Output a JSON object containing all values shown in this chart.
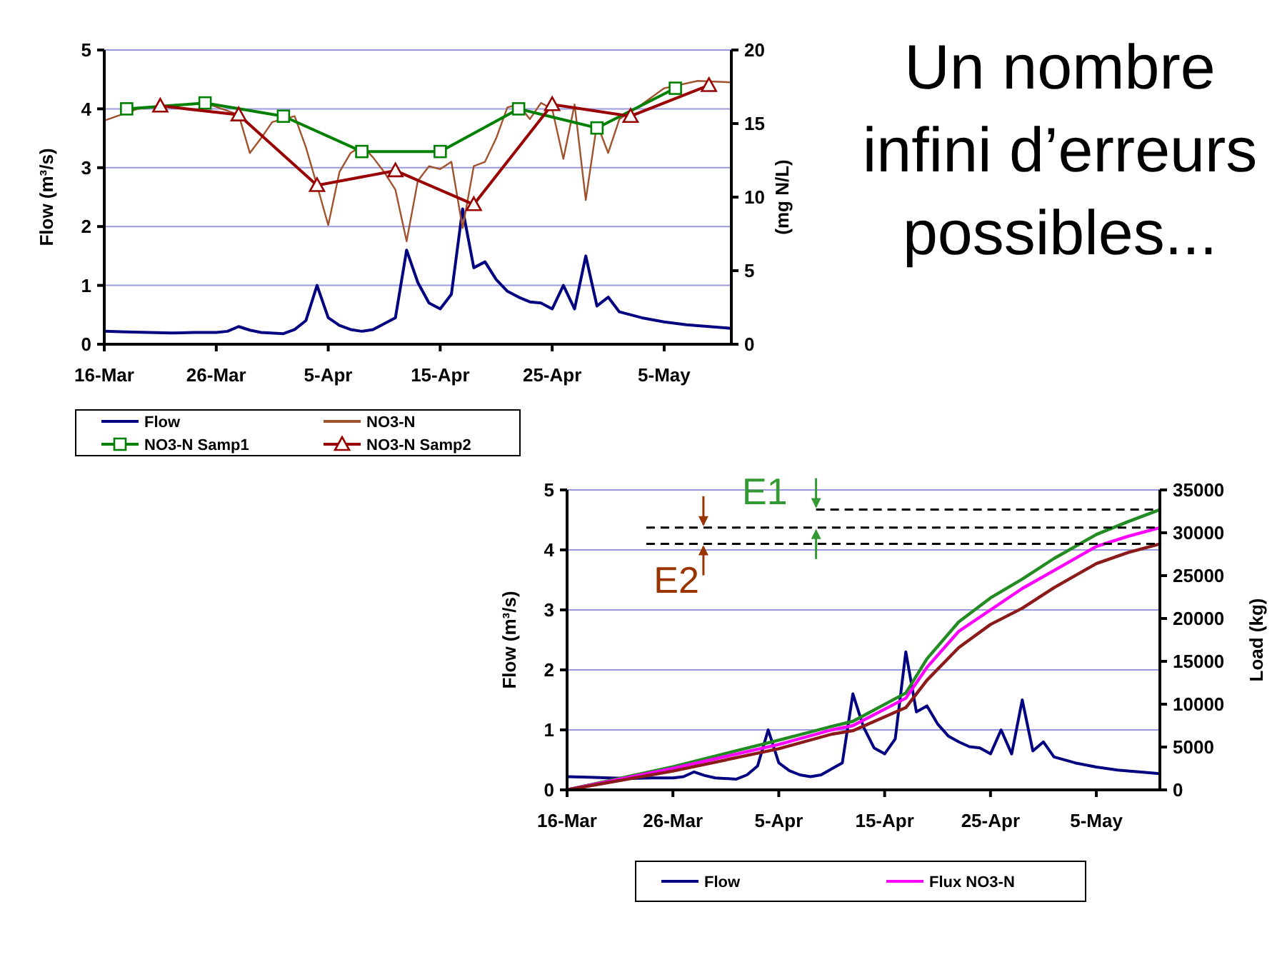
{
  "chart_data": [
    {
      "type": "line",
      "ylabel": "Flow (m³/s)",
      "y2label": "(mg N/L)",
      "ylim": [
        0,
        5
      ],
      "yticks": [
        0,
        1,
        2,
        3,
        4,
        5
      ],
      "y2lim": [
        0,
        20
      ],
      "y2ticks": [
        0,
        5,
        10,
        15,
        20
      ],
      "xlim": [
        "--03-16",
        "--05-11"
      ],
      "xticks": [
        {
          "value": "--03-16",
          "label": "16-Mar"
        },
        {
          "value": "--03-26",
          "label": "26-Mar"
        },
        {
          "value": "--04-05",
          "label": "5-Apr"
        },
        {
          "value": "--04-15",
          "label": "15-Apr"
        },
        {
          "value": "--04-25",
          "label": "25-Apr"
        },
        {
          "value": "--05-05",
          "label": "5-May"
        }
      ],
      "grid": "y",
      "legend": "bottom",
      "series": [
        {
          "name": "Flow",
          "color": "#000080",
          "x": [
            "--03-16",
            "--03-18",
            "--03-20",
            "--03-22",
            "--03-24",
            "--03-26",
            "--03-27",
            "--03-28",
            "--03-29",
            "--03-30",
            "--04-01",
            "--04-02",
            "--04-03",
            "--04-04",
            "--04-05",
            "--04-06",
            "--04-07",
            "--04-08",
            "--04-09",
            "--04-10",
            "--04-11",
            "--04-12",
            "--04-13",
            "--04-14",
            "--04-15",
            "--04-16",
            "--04-17",
            "--04-18",
            "--04-19",
            "--04-20",
            "--04-21",
            "--04-22",
            "--04-23",
            "--04-24",
            "--04-25",
            "--04-26",
            "--04-27",
            "--04-28",
            "--04-29",
            "--04-30",
            "--05-01",
            "--05-03",
            "--05-05",
            "--05-07",
            "--05-09",
            "--05-11"
          ],
          "values": [
            0.22,
            0.21,
            0.2,
            0.19,
            0.2,
            0.2,
            0.22,
            0.3,
            0.24,
            0.2,
            0.18,
            0.25,
            0.4,
            1.0,
            0.45,
            0.32,
            0.25,
            0.22,
            0.25,
            0.35,
            0.45,
            1.6,
            1.05,
            0.7,
            0.6,
            0.85,
            2.3,
            1.3,
            1.4,
            1.1,
            0.9,
            0.8,
            0.72,
            0.7,
            0.6,
            1.0,
            0.6,
            1.5,
            0.65,
            0.8,
            0.55,
            0.45,
            0.38,
            0.33,
            0.3,
            0.27
          ]
        },
        {
          "name": "NO3-N",
          "color": "#a0522d",
          "axis": "y2",
          "x": [
            "--03-16",
            "--03-19",
            "--03-22",
            "--03-25",
            "--03-28",
            "--03-29",
            "--03-30",
            "--03-31",
            "--04-02",
            "--04-03",
            "--04-04",
            "--04-05",
            "--04-06",
            "--04-07",
            "--04-08",
            "--04-09",
            "--04-10",
            "--04-11",
            "--04-12",
            "--04-13",
            "--04-14",
            "--04-15",
            "--04-16",
            "--04-17",
            "--04-18",
            "--04-19",
            "--04-20",
            "--04-21",
            "--04-22",
            "--04-23",
            "--04-24",
            "--04-25",
            "--04-26",
            "--04-27",
            "--04-28",
            "--04-29",
            "--04-30",
            "--05-01",
            "--05-03",
            "--05-05",
            "--05-08",
            "--05-11"
          ],
          "values": [
            15.2,
            16.0,
            16.2,
            16.4,
            15.6,
            13.0,
            14.0,
            15.1,
            15.5,
            13.4,
            10.8,
            8.1,
            11.7,
            13.0,
            13.5,
            12.7,
            11.7,
            10.5,
            7.0,
            11.1,
            12.1,
            11.9,
            12.4,
            7.9,
            12.1,
            12.4,
            14.0,
            16.1,
            16.3,
            15.3,
            16.4,
            16.0,
            12.6,
            16.3,
            9.8,
            15.0,
            13.0,
            15.3,
            16.3,
            17.4,
            17.9,
            17.8
          ]
        },
        {
          "name": "NO3-N Samp1",
          "color": "#008000",
          "axis": "y2",
          "marker": "square",
          "x": [
            "--03-18",
            "--03-25",
            "--04-01",
            "--04-08",
            "--04-15",
            "--04-22",
            "--04-29",
            "--05-06"
          ],
          "values": [
            16.0,
            16.4,
            15.5,
            13.1,
            13.1,
            16.0,
            14.7,
            17.4
          ]
        },
        {
          "name": "NO3-N Samp2",
          "color": "#990000",
          "axis": "y2",
          "marker": "triangle",
          "x": [
            "--03-21",
            "--03-28",
            "--04-04",
            "--04-11",
            "--04-18",
            "--04-25",
            "--05-02",
            "--05-09"
          ],
          "values": [
            16.2,
            15.6,
            10.8,
            11.8,
            9.5,
            16.3,
            15.5,
            17.6
          ]
        }
      ]
    },
    {
      "type": "other",
      "title": "Un nombre infini d’erreurs possibles..."
    },
    {
      "type": "line",
      "ylabel": "Flow (m³/s)",
      "y2label": "Load (kg)",
      "ylim": [
        0,
        5
      ],
      "yticks": [
        0,
        1,
        2,
        3,
        4,
        5
      ],
      "y2lim": [
        0,
        35000
      ],
      "y2ticks": [
        0,
        5000,
        10000,
        15000,
        20000,
        25000,
        30000,
        35000
      ],
      "xlim": [
        "--03-16",
        "--05-11"
      ],
      "xticks": [
        {
          "value": "--03-16",
          "label": "16-Mar"
        },
        {
          "value": "--03-26",
          "label": "26-Mar"
        },
        {
          "value": "--04-05",
          "label": "5-Apr"
        },
        {
          "value": "--04-15",
          "label": "15-Apr"
        },
        {
          "value": "--04-25",
          "label": "25-Apr"
        },
        {
          "value": "--05-05",
          "label": "5-May"
        }
      ],
      "grid": "y",
      "legend": "bottom",
      "ref_lines": [
        {
          "axis": "y2",
          "value": 32700,
          "color": "#000000",
          "line_style": "dashed"
        },
        {
          "axis": "y2",
          "value": 30600,
          "color": "#000000",
          "line_style": "dashed"
        },
        {
          "axis": "y2",
          "value": 28700,
          "color": "#000000",
          "line_style": "dashed"
        }
      ],
      "annotations": [
        "E1",
        "E2"
      ],
      "series": [
        {
          "name": "Flow",
          "color": "#000080",
          "x": [
            "--03-16",
            "--03-18",
            "--03-20",
            "--03-22",
            "--03-24",
            "--03-26",
            "--03-27",
            "--03-28",
            "--03-29",
            "--03-30",
            "--04-01",
            "--04-02",
            "--04-03",
            "--04-04",
            "--04-05",
            "--04-06",
            "--04-07",
            "--04-08",
            "--04-09",
            "--04-10",
            "--04-11",
            "--04-12",
            "--04-13",
            "--04-14",
            "--04-15",
            "--04-16",
            "--04-17",
            "--04-18",
            "--04-19",
            "--04-20",
            "--04-21",
            "--04-22",
            "--04-23",
            "--04-24",
            "--04-25",
            "--04-26",
            "--04-27",
            "--04-28",
            "--04-29",
            "--04-30",
            "--05-01",
            "--05-03",
            "--05-05",
            "--05-07",
            "--05-09",
            "--05-11"
          ],
          "values": [
            0.22,
            0.21,
            0.2,
            0.19,
            0.2,
            0.2,
            0.22,
            0.3,
            0.24,
            0.2,
            0.18,
            0.25,
            0.4,
            1.0,
            0.45,
            0.32,
            0.25,
            0.22,
            0.25,
            0.35,
            0.45,
            1.6,
            1.05,
            0.7,
            0.6,
            0.85,
            2.3,
            1.3,
            1.4,
            1.1,
            0.9,
            0.8,
            0.72,
            0.7,
            0.6,
            1.0,
            0.6,
            1.5,
            0.65,
            0.8,
            0.55,
            0.45,
            0.38,
            0.33,
            0.3,
            0.27
          ]
        },
        {
          "color": "#228b22",
          "axis": "y2",
          "x": [
            "--03-16",
            "--03-26",
            "--04-05",
            "--04-10",
            "--04-12",
            "--04-17",
            "--04-19",
            "--04-22",
            "--04-25",
            "--04-28",
            "--05-01",
            "--05-05",
            "--05-08",
            "--05-11"
          ],
          "values": [
            0,
            2700,
            5800,
            7400,
            8000,
            11300,
            15300,
            19600,
            22400,
            24600,
            27000,
            29800,
            31300,
            32700
          ]
        },
        {
          "name": "Flux NO3-N",
          "color": "#ff00ff",
          "axis": "y2",
          "x": [
            "--03-16",
            "--03-26",
            "--04-05",
            "--04-10",
            "--04-12",
            "--04-17",
            "--04-19",
            "--04-22",
            "--04-25",
            "--04-28",
            "--05-01",
            "--05-05",
            "--05-08",
            "--05-11"
          ],
          "values": [
            0,
            2500,
            5300,
            7000,
            7500,
            10700,
            14300,
            18500,
            21000,
            23500,
            25600,
            28400,
            29600,
            30600
          ]
        },
        {
          "color": "#8b1a1a",
          "axis": "y2",
          "x": [
            "--03-16",
            "--03-26",
            "--04-05",
            "--04-10",
            "--04-12",
            "--04-17",
            "--04-19",
            "--04-22",
            "--04-25",
            "--04-28",
            "--05-01",
            "--05-05",
            "--05-08",
            "--05-11"
          ],
          "values": [
            0,
            2200,
            4800,
            6500,
            6900,
            9600,
            12800,
            16600,
            19300,
            21200,
            23600,
            26400,
            27700,
            28700
          ]
        }
      ]
    }
  ]
}
